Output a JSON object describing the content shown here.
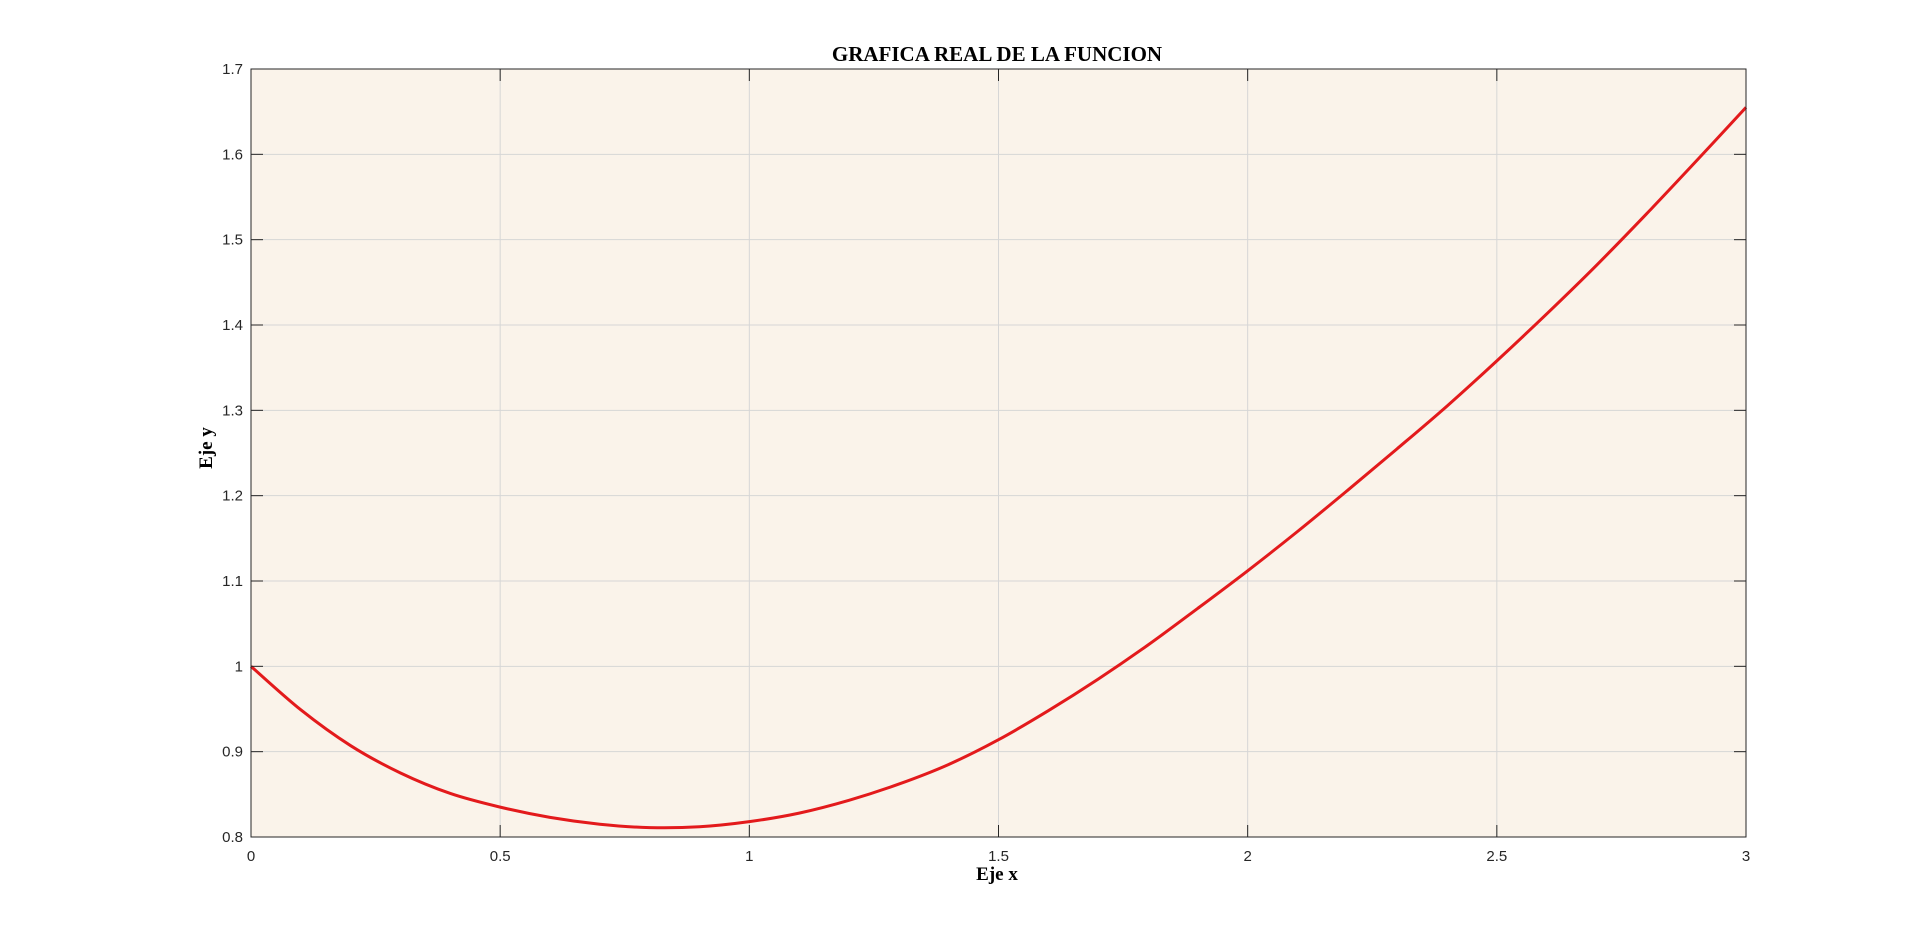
{
  "chart_data": {
    "type": "line",
    "title": "GRAFICA REAL DE LA FUNCION",
    "xlabel": "Eje x",
    "ylabel": "Eje y",
    "xlim": [
      0,
      3
    ],
    "ylim": [
      0.8,
      1.7
    ],
    "xticks": [
      0,
      0.5,
      1,
      1.5,
      2,
      2.5,
      3
    ],
    "xtick_labels": [
      "0",
      "0.5",
      "1",
      "1.5",
      "2",
      "2.5",
      "3"
    ],
    "yticks": [
      0.8,
      0.9,
      1.0,
      1.1,
      1.2,
      1.3,
      1.4,
      1.5,
      1.6,
      1.7
    ],
    "ytick_labels": [
      "0.8",
      "0.9",
      "1",
      "1.1",
      "1.2",
      "1.3",
      "1.4",
      "1.5",
      "1.6",
      "1.7"
    ],
    "grid": true,
    "colors": {
      "plot_background": "#faf3ea",
      "line": "#e31a1c",
      "grid": "#d6d6d6",
      "axis": "#262626"
    },
    "series": [
      {
        "x": [
          0,
          0.1,
          0.2,
          0.3,
          0.4,
          0.5,
          0.6,
          0.7,
          0.8,
          0.9,
          1.0,
          1.1,
          1.2,
          1.3,
          1.4,
          1.5,
          1.6,
          1.7,
          1.8,
          1.9,
          2.0,
          2.1,
          2.2,
          2.3,
          2.4,
          2.5,
          2.6,
          2.7,
          2.8,
          2.9,
          3.0
        ],
        "y": [
          1.0,
          0.949,
          0.907,
          0.875,
          0.851,
          0.835,
          0.823,
          0.815,
          0.811,
          0.812,
          0.818,
          0.828,
          0.843,
          0.862,
          0.885,
          0.914,
          0.948,
          0.985,
          1.025,
          1.068,
          1.112,
          1.158,
          1.206,
          1.255,
          1.305,
          1.358,
          1.413,
          1.47,
          1.53,
          1.592,
          1.655
        ]
      }
    ]
  }
}
